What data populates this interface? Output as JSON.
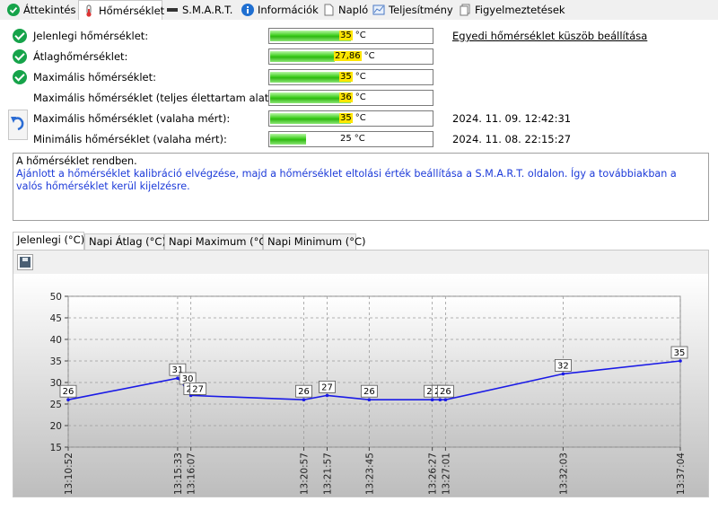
{
  "tabs": [
    {
      "label": "Áttekintés",
      "icon": "check-circle-icon"
    },
    {
      "label": "Hőmérséklet",
      "icon": "thermometer-icon"
    },
    {
      "label": "S.M.A.R.T.",
      "icon": "drive-bar-icon"
    },
    {
      "label": "Információk",
      "icon": "info-icon"
    },
    {
      "label": "Napló",
      "icon": "document-icon"
    },
    {
      "label": "Teljesítmény",
      "icon": "performance-chart-icon"
    },
    {
      "label": "Figyelmeztetések",
      "icon": "alerts-icon"
    }
  ],
  "active_tab": 1,
  "rows": [
    {
      "label": "Jelenlegi hőmérséklet:",
      "num": "35",
      "unit": "°C",
      "fill": 0.5,
      "check": true,
      "right": "Egyedi hőmérséklet küszöb beállítása",
      "right_link": true
    },
    {
      "label": "Átlaghőmérséklet:",
      "num": "27,86",
      "unit": "°C",
      "fill": 0.4,
      "check": true,
      "right": ""
    },
    {
      "label": "Maximális hőmérséklet:",
      "num": "35",
      "unit": "°C",
      "fill": 0.5,
      "check": true,
      "right": ""
    },
    {
      "label": "Maximális hőmérséklet (teljes élettartam alatt):",
      "num": "36",
      "unit": "°C",
      "fill": 0.5,
      "check": false,
      "right": ""
    },
    {
      "label": "Maximális hőmérséklet (valaha mért):",
      "num": "35",
      "unit": "°C",
      "fill": 0.5,
      "check": false,
      "right": "2024. 11. 09. 12:42:31"
    },
    {
      "label": "Minimális hőmérséklet (valaha mért):",
      "num": "25",
      "unit": "°C",
      "fill": 0.22,
      "check": false,
      "right": "2024. 11. 08. 22:15:27"
    }
  ],
  "message": {
    "status": "A hőmérséklet rendben.",
    "advice": "Ajánlott a hőmérséklet kalibráció elvégzése, majd a hőmérséklet eltolási érték beállítása a S.M.A.R.T. oldalon. Így a továbbiakban a valós hőmérséklet kerül kijelzésre."
  },
  "chart_tabs": [
    "Jelenlegi (°C)",
    "Napi Átlag (°C)",
    "Napi Maximum (°C)",
    "Napi Minimum (°C)"
  ],
  "active_chart_tab": 0,
  "colors": {
    "line": "#1a1ae6",
    "highlight": "#ffe600",
    "check": "#16a34a",
    "warn_text": "#1d3bd9"
  },
  "chart_data": {
    "type": "line",
    "ylim": [
      15,
      50
    ],
    "yticks": [
      15,
      20,
      25,
      30,
      35,
      40,
      45,
      50
    ],
    "grid": true,
    "points": [
      {
        "t": "13:10:52",
        "v": 26
      },
      {
        "t": "13:15:33",
        "v": 31
      },
      {
        "t": "13:15:45",
        "v": 30
      },
      {
        "t": "13:15:56",
        "v": 28
      },
      {
        "t": "13:16:07",
        "v": 27
      },
      {
        "t": "13:20:57",
        "v": 26
      },
      {
        "t": "13:21:57",
        "v": 27
      },
      {
        "t": "13:23:45",
        "v": 26
      },
      {
        "t": "13:26:27",
        "v": 26
      },
      {
        "t": "13:26:47",
        "v": 26
      },
      {
        "t": "13:27:01",
        "v": 26
      },
      {
        "t": "13:32:03",
        "v": 32
      },
      {
        "t": "13:37:04",
        "v": 35
      }
    ],
    "xtick_labels": [
      "13:10:52",
      "13:15:33",
      "13:16:07",
      "13:20:57",
      "13:21:57",
      "13:23:45",
      "13:26:27",
      "13:27:01",
      "13:32:03",
      "13:37:04"
    ]
  }
}
